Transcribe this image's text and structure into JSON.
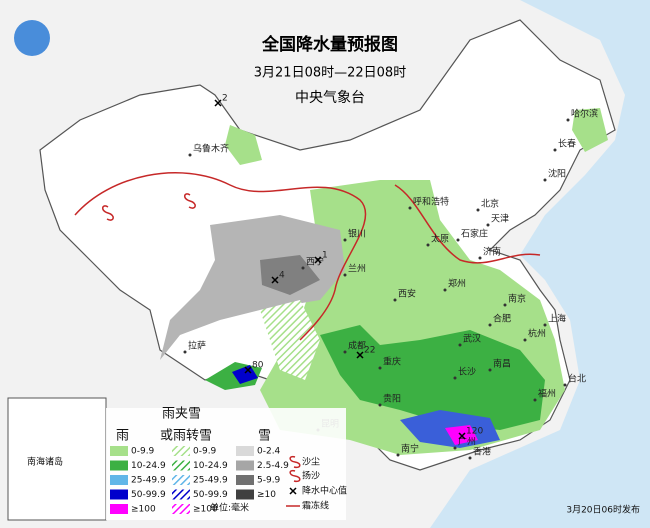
{
  "header": {
    "title": "全国降水量预报图",
    "period": "3月21日08时—22日08时",
    "issuer": "中央气象台"
  },
  "cities": [
    "乌鲁木齐",
    "哈尔滨",
    "长春",
    "沈阳",
    "呼和浩特",
    "北京",
    "天津",
    "石家庄",
    "太原",
    "济南",
    "银川",
    "西宁",
    "兰州",
    "西安",
    "郑州",
    "合肥",
    "南京",
    "上海",
    "杭州",
    "武汉",
    "成都",
    "重庆",
    "长沙",
    "南昌",
    "贵阳",
    "昆明",
    "南宁",
    "广州",
    "香港",
    "福州",
    "台北",
    "拉萨"
  ],
  "centers": [
    2,
    1,
    4,
    22,
    80,
    120
  ],
  "legend": {
    "rain_title": "雨",
    "sleet_title": [
      "雨夹雪",
      "或雨转雪"
    ],
    "snow_title": "雪",
    "rain": [
      "0-9.9",
      "10-24.9",
      "25-49.9",
      "50-99.9",
      "≥100"
    ],
    "sleet": [
      "0-9.9",
      "10-24.9",
      "25-49.9",
      "50-99.9",
      "≥100"
    ],
    "snow": [
      "0-2.4",
      "2.5-4.9",
      "5-9.9",
      "≥10"
    ],
    "symbols": [
      "沙尘",
      "扬沙",
      "降水中心值",
      "霜冻线"
    ],
    "unit": "单位:毫米"
  },
  "inset": "南海诸岛",
  "issued": "3月20日06时发布"
}
